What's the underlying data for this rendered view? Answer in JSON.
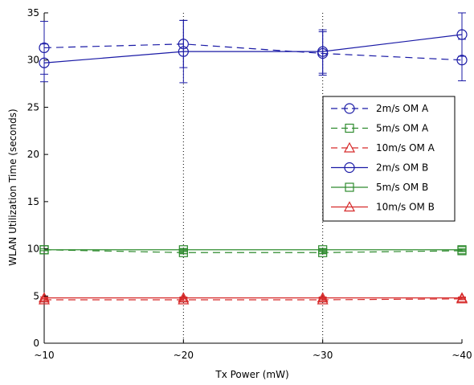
{
  "chart_data": {
    "type": "line",
    "xlabel": "Tx Power (mW)",
    "ylabel": "WLAN Utilization Time (seconds)",
    "categories": [
      "~10",
      "~20",
      "~30",
      "~40"
    ],
    "ylim": [
      0,
      35
    ],
    "yticks": [
      "0",
      "5",
      "10",
      "15",
      "20",
      "25",
      "30",
      "35"
    ],
    "grid": "vertical dotted lines at x ticks",
    "legend_position": "right",
    "series": [
      {
        "name": "2m/s OM A",
        "values": [
          31.3,
          31.7,
          30.7,
          30.0
        ],
        "error": [
          2.8,
          2.5,
          2.3,
          2.2
        ],
        "color": "#1a1aa6",
        "marker": "circle",
        "dash": "dashed"
      },
      {
        "name": "5m/s OM A",
        "values": [
          9.9,
          9.6,
          9.6,
          9.8
        ],
        "error": [
          0.1,
          0.1,
          0.1,
          0.1
        ],
        "color": "#2e8b2e",
        "marker": "square",
        "dash": "dashed"
      },
      {
        "name": "10m/s OM A",
        "values": [
          4.6,
          4.6,
          4.6,
          4.7
        ],
        "error": [
          0.1,
          0.1,
          0.1,
          0.1
        ],
        "color": "#d62a2a",
        "marker": "triangle",
        "dash": "dashed"
      },
      {
        "name": "2m/s OM B",
        "values": [
          29.7,
          30.9,
          30.9,
          32.7
        ],
        "error": [
          2.0,
          3.3,
          2.3,
          2.3
        ],
        "color": "#1a1aa6",
        "marker": "circle",
        "dash": "solid"
      },
      {
        "name": "5m/s OM B",
        "values": [
          9.9,
          9.9,
          9.9,
          9.9
        ],
        "error": [
          0.1,
          0.1,
          0.1,
          0.1
        ],
        "color": "#2e8b2e",
        "marker": "square",
        "dash": "solid"
      },
      {
        "name": "10m/s OM B",
        "values": [
          4.8,
          4.8,
          4.8,
          4.8
        ],
        "error": [
          0.1,
          0.1,
          0.1,
          0.1
        ],
        "color": "#d62a2a",
        "marker": "triangle",
        "dash": "solid"
      }
    ]
  }
}
